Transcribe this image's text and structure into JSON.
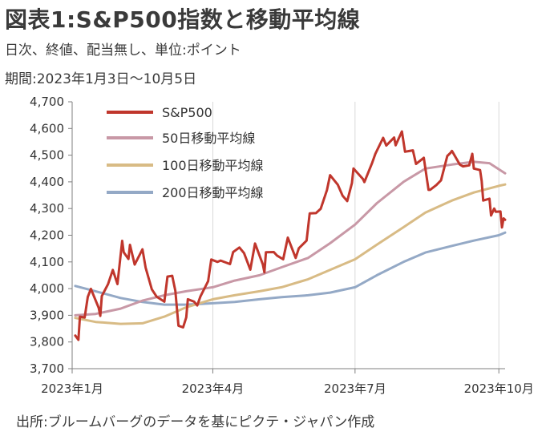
{
  "title": "図表1:S&P500指数と移動平均線",
  "subtitle": "日次、終値、配当無し、単位:ポイント",
  "period": "期間:2023年1月3日〜10月5日",
  "source": "出所:ブルームバーグのデータを基にピクテ・ジャパン作成",
  "colors": {
    "sp500": "#c0362c",
    "ma50": "#c898a6",
    "ma100": "#d8bb85",
    "ma200": "#94a9c6",
    "grid": "#d9d9d9",
    "axis": "#7f7f7f"
  },
  "chart_data": {
    "type": "line",
    "x_type": "date",
    "xlim": [
      "2023-01-01",
      "2023-10-05"
    ],
    "ylim": [
      3700,
      4700
    ],
    "yticks": [
      3700,
      3800,
      3900,
      4000,
      4100,
      4200,
      4300,
      4400,
      4500,
      4600,
      4700
    ],
    "ytick_labels": [
      "3,700",
      "3,800",
      "3,900",
      "4,000",
      "4,100",
      "4,200",
      "4,300",
      "4,400",
      "4,500",
      "4,600",
      "4,700"
    ],
    "xticks": [
      "2023-01-01",
      "2023-04-01",
      "2023-07-01",
      "2023-10-01"
    ],
    "xtick_labels": [
      "2023年1月",
      "2023年4月",
      "2023年7月",
      "2023年10月"
    ],
    "grid": "vertical",
    "legend_position": "top-left",
    "series": [
      {
        "name": "S&P500",
        "color_key": "sp500",
        "points": [
          [
            "2023-01-03",
            3824
          ],
          [
            "2023-01-05",
            3808
          ],
          [
            "2023-01-06",
            3895
          ],
          [
            "2023-01-09",
            3892
          ],
          [
            "2023-01-11",
            3969
          ],
          [
            "2023-01-13",
            3999
          ],
          [
            "2023-01-18",
            3928
          ],
          [
            "2023-01-19",
            3898
          ],
          [
            "2023-01-20",
            3972
          ],
          [
            "2023-01-24",
            4017
          ],
          [
            "2023-01-27",
            4070
          ],
          [
            "2023-01-30",
            4017
          ],
          [
            "2023-02-02",
            4179
          ],
          [
            "2023-02-03",
            4136
          ],
          [
            "2023-02-06",
            4111
          ],
          [
            "2023-02-07",
            4164
          ],
          [
            "2023-02-10",
            4090
          ],
          [
            "2023-02-14",
            4136
          ],
          [
            "2023-02-15",
            4147
          ],
          [
            "2023-02-17",
            4079
          ],
          [
            "2023-02-21",
            3997
          ],
          [
            "2023-02-24",
            3970
          ],
          [
            "2023-03-01",
            3951
          ],
          [
            "2023-03-03",
            4045
          ],
          [
            "2023-03-06",
            4048
          ],
          [
            "2023-03-08",
            3992
          ],
          [
            "2023-03-10",
            3861
          ],
          [
            "2023-03-13",
            3855
          ],
          [
            "2023-03-15",
            3892
          ],
          [
            "2023-03-16",
            3960
          ],
          [
            "2023-03-20",
            3951
          ],
          [
            "2023-03-22",
            3937
          ],
          [
            "2023-03-24",
            3970
          ],
          [
            "2023-03-29",
            4028
          ],
          [
            "2023-03-31",
            4109
          ],
          [
            "2023-04-04",
            4100
          ],
          [
            "2023-04-06",
            4105
          ],
          [
            "2023-04-12",
            4092
          ],
          [
            "2023-04-14",
            4137
          ],
          [
            "2023-04-18",
            4154
          ],
          [
            "2023-04-21",
            4133
          ],
          [
            "2023-04-25",
            4071
          ],
          [
            "2023-04-28",
            4169
          ],
          [
            "2023-05-03",
            4091
          ],
          [
            "2023-05-04",
            4061
          ],
          [
            "2023-05-05",
            4136
          ],
          [
            "2023-05-10",
            4137
          ],
          [
            "2023-05-12",
            4124
          ],
          [
            "2023-05-16",
            4110
          ],
          [
            "2023-05-19",
            4191
          ],
          [
            "2023-05-24",
            4115
          ],
          [
            "2023-05-26",
            4151
          ],
          [
            "2023-05-31",
            4180
          ],
          [
            "2023-06-02",
            4282
          ],
          [
            "2023-06-06",
            4283
          ],
          [
            "2023-06-09",
            4299
          ],
          [
            "2023-06-13",
            4369
          ],
          [
            "2023-06-15",
            4425
          ],
          [
            "2023-06-20",
            4389
          ],
          [
            "2023-06-23",
            4348
          ],
          [
            "2023-06-26",
            4328
          ],
          [
            "2023-06-29",
            4396
          ],
          [
            "2023-06-30",
            4450
          ],
          [
            "2023-07-06",
            4411
          ],
          [
            "2023-07-07",
            4399
          ],
          [
            "2023-07-12",
            4472
          ],
          [
            "2023-07-14",
            4505
          ],
          [
            "2023-07-19",
            4565
          ],
          [
            "2023-07-21",
            4536
          ],
          [
            "2023-07-26",
            4566
          ],
          [
            "2023-07-27",
            4537
          ],
          [
            "2023-07-31",
            4589
          ],
          [
            "2023-08-02",
            4513
          ],
          [
            "2023-08-07",
            4518
          ],
          [
            "2023-08-09",
            4467
          ],
          [
            "2023-08-14",
            4490
          ],
          [
            "2023-08-17",
            4370
          ],
          [
            "2023-08-18",
            4370
          ],
          [
            "2023-08-22",
            4388
          ],
          [
            "2023-08-25",
            4406
          ],
          [
            "2023-08-29",
            4497
          ],
          [
            "2023-08-31",
            4508
          ],
          [
            "2023-09-01",
            4516
          ],
          [
            "2023-09-06",
            4465
          ],
          [
            "2023-09-08",
            4458
          ],
          [
            "2023-09-12",
            4462
          ],
          [
            "2023-09-14",
            4505
          ],
          [
            "2023-09-15",
            4450
          ],
          [
            "2023-09-19",
            4444
          ],
          [
            "2023-09-20",
            4403
          ],
          [
            "2023-09-21",
            4330
          ],
          [
            "2023-09-25",
            4337
          ],
          [
            "2023-09-26",
            4274
          ],
          [
            "2023-09-28",
            4300
          ],
          [
            "2023-09-29",
            4288
          ],
          [
            "2023-10-02",
            4289
          ],
          [
            "2023-10-03",
            4229
          ],
          [
            "2023-10-04",
            4263
          ],
          [
            "2023-10-05",
            4258
          ]
        ]
      },
      {
        "name": "50日移動平均線",
        "color_key": "ma50",
        "points": [
          [
            "2023-01-03",
            3900
          ],
          [
            "2023-01-16",
            3905
          ],
          [
            "2023-02-01",
            3925
          ],
          [
            "2023-02-15",
            3955
          ],
          [
            "2023-03-01",
            3975
          ],
          [
            "2023-03-15",
            3990
          ],
          [
            "2023-04-01",
            4005
          ],
          [
            "2023-04-15",
            4030
          ],
          [
            "2023-05-01",
            4050
          ],
          [
            "2023-05-15",
            4080
          ],
          [
            "2023-06-01",
            4115
          ],
          [
            "2023-06-15",
            4170
          ],
          [
            "2023-07-01",
            4240
          ],
          [
            "2023-07-15",
            4320
          ],
          [
            "2023-08-01",
            4400
          ],
          [
            "2023-08-15",
            4450
          ],
          [
            "2023-09-01",
            4465
          ],
          [
            "2023-09-15",
            4475
          ],
          [
            "2023-09-25",
            4470
          ],
          [
            "2023-10-05",
            4432
          ]
        ]
      },
      {
        "name": "100日移動平均線",
        "color_key": "ma100",
        "points": [
          [
            "2023-01-03",
            3890
          ],
          [
            "2023-01-16",
            3875
          ],
          [
            "2023-02-01",
            3868
          ],
          [
            "2023-02-15",
            3870
          ],
          [
            "2023-03-01",
            3895
          ],
          [
            "2023-03-15",
            3930
          ],
          [
            "2023-04-01",
            3960
          ],
          [
            "2023-04-15",
            3975
          ],
          [
            "2023-05-01",
            3990
          ],
          [
            "2023-05-15",
            4005
          ],
          [
            "2023-06-01",
            4035
          ],
          [
            "2023-06-15",
            4070
          ],
          [
            "2023-07-01",
            4110
          ],
          [
            "2023-07-15",
            4165
          ],
          [
            "2023-08-01",
            4230
          ],
          [
            "2023-08-15",
            4285
          ],
          [
            "2023-09-01",
            4330
          ],
          [
            "2023-09-15",
            4360
          ],
          [
            "2023-10-01",
            4385
          ],
          [
            "2023-10-05",
            4390
          ]
        ]
      },
      {
        "name": "200日移動平均線",
        "color_key": "ma200",
        "points": [
          [
            "2023-01-03",
            4010
          ],
          [
            "2023-01-16",
            3990
          ],
          [
            "2023-02-01",
            3965
          ],
          [
            "2023-02-15",
            3950
          ],
          [
            "2023-03-01",
            3940
          ],
          [
            "2023-03-15",
            3940
          ],
          [
            "2023-04-01",
            3945
          ],
          [
            "2023-04-15",
            3950
          ],
          [
            "2023-05-01",
            3960
          ],
          [
            "2023-05-15",
            3968
          ],
          [
            "2023-06-01",
            3975
          ],
          [
            "2023-06-15",
            3985
          ],
          [
            "2023-07-01",
            4005
          ],
          [
            "2023-07-15",
            4050
          ],
          [
            "2023-08-01",
            4100
          ],
          [
            "2023-08-15",
            4135
          ],
          [
            "2023-09-01",
            4160
          ],
          [
            "2023-09-15",
            4180
          ],
          [
            "2023-10-01",
            4200
          ],
          [
            "2023-10-05",
            4210
          ]
        ]
      }
    ]
  }
}
